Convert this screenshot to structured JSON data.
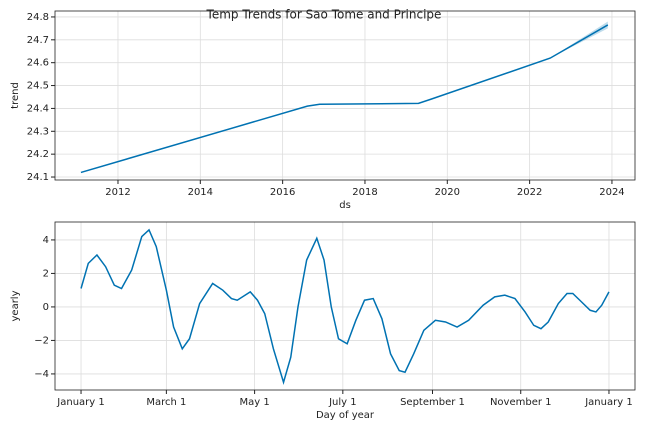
{
  "chart_data": [
    {
      "type": "line",
      "title": "Temp Trends for Sao Tome and Principe",
      "x_label": "ds",
      "y_label": "trend",
      "x": [
        2011.1,
        2016.6,
        2016.9,
        2019.3,
        2019.6,
        2022.5,
        2023.9
      ],
      "series": [
        {
          "name": "trend",
          "color": "#0072B2",
          "values": [
            24.12,
            24.41,
            24.418,
            24.422,
            24.44,
            24.62,
            24.765
          ],
          "lower": [
            null,
            null,
            null,
            null,
            null,
            24.62,
            24.75
          ],
          "upper": [
            null,
            null,
            null,
            null,
            null,
            24.62,
            24.78
          ]
        }
      ],
      "xlim": [
        2010.47,
        2024.56
      ],
      "xticks": [
        2012,
        2014,
        2016,
        2018,
        2020,
        2022,
        2024
      ],
      "ylim": [
        24.087,
        24.826
      ],
      "yticks": [
        24.1,
        24.2,
        24.3,
        24.4,
        24.5,
        24.6,
        24.7,
        24.8
      ],
      "grid": true
    },
    {
      "type": "line",
      "x_label": "Day of year",
      "y_label": "yearly",
      "x": [
        0,
        5,
        11,
        17,
        23,
        28,
        35,
        42,
        47,
        52,
        59,
        64,
        70,
        75,
        82,
        91,
        98,
        104,
        108,
        117,
        122,
        127,
        133,
        140,
        145,
        150,
        156,
        163,
        168,
        173,
        178,
        184,
        190,
        196,
        202,
        208,
        214,
        220,
        224,
        230,
        237,
        245,
        252,
        260,
        268,
        278,
        286,
        293,
        300,
        307,
        313,
        318,
        323,
        330,
        336,
        340,
        346,
        352,
        356,
        360,
        365
      ],
      "series": [
        {
          "name": "yearly",
          "color": "#0072B2",
          "values": [
            1.1,
            2.6,
            3.1,
            2.4,
            1.3,
            1.1,
            2.2,
            4.2,
            4.6,
            3.6,
            1.0,
            -1.2,
            -2.5,
            -1.9,
            0.2,
            1.4,
            1.0,
            0.5,
            0.4,
            0.9,
            0.4,
            -0.4,
            -2.5,
            -4.5,
            -3.0,
            0.0,
            2.8,
            4.1,
            2.8,
            0.0,
            -1.9,
            -2.2,
            -0.8,
            0.4,
            0.5,
            -0.7,
            -2.8,
            -3.8,
            -3.9,
            -2.8,
            -1.4,
            -0.8,
            -0.9,
            -1.2,
            -0.8,
            0.1,
            0.6,
            0.7,
            0.5,
            -0.3,
            -1.1,
            -1.3,
            -0.9,
            0.2,
            0.8,
            0.8,
            0.3,
            -0.2,
            -0.3,
            0.1,
            0.9
          ]
        }
      ],
      "xlim": [
        -18,
        383
      ],
      "xticks": [
        {
          "value": 0,
          "label": "January 1"
        },
        {
          "value": 59,
          "label": "March 1"
        },
        {
          "value": 120,
          "label": "May 1"
        },
        {
          "value": 181,
          "label": "July 1"
        },
        {
          "value": 243,
          "label": "September 1"
        },
        {
          "value": 304,
          "label": "November 1"
        },
        {
          "value": 365,
          "label": "January 1"
        }
      ],
      "ylim": [
        -4.96,
        5.07
      ],
      "yticks": [
        {
          "value": -4,
          "label": "−4"
        },
        {
          "value": -2,
          "label": "−2"
        },
        0,
        2,
        4
      ],
      "grid": true
    }
  ]
}
